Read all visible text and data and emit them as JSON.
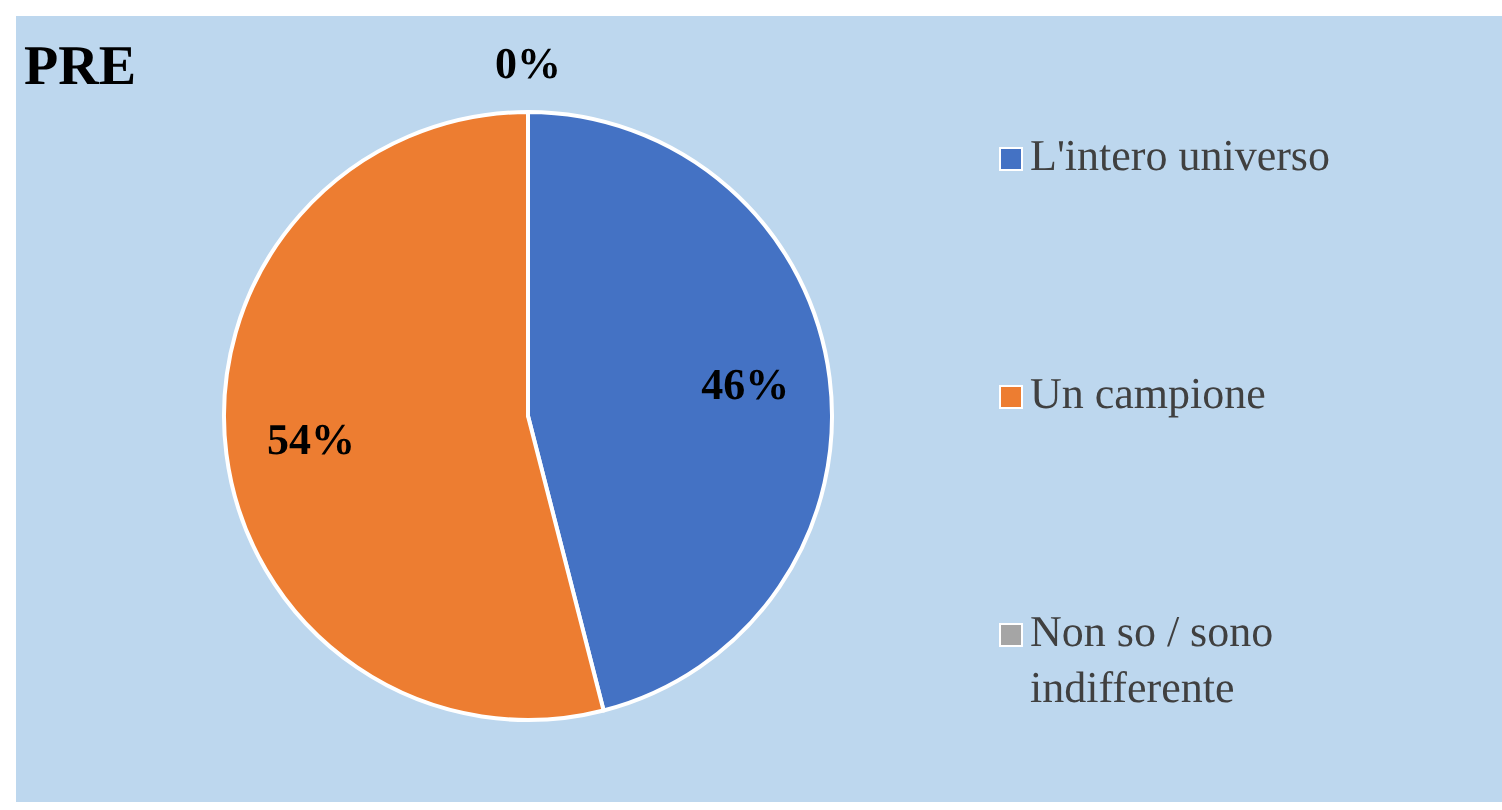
{
  "chart_data": {
    "type": "pie",
    "title": "PRE",
    "categories": [
      "L'intero universo",
      "Un campione",
      "Non so / sono indifferente"
    ],
    "values": [
      46,
      54,
      0
    ],
    "colors": [
      "#4472c4",
      "#ed7d31",
      "#a5a5a5"
    ],
    "value_labels": [
      "46%",
      "54%",
      "0%"
    ],
    "legend": "right"
  }
}
